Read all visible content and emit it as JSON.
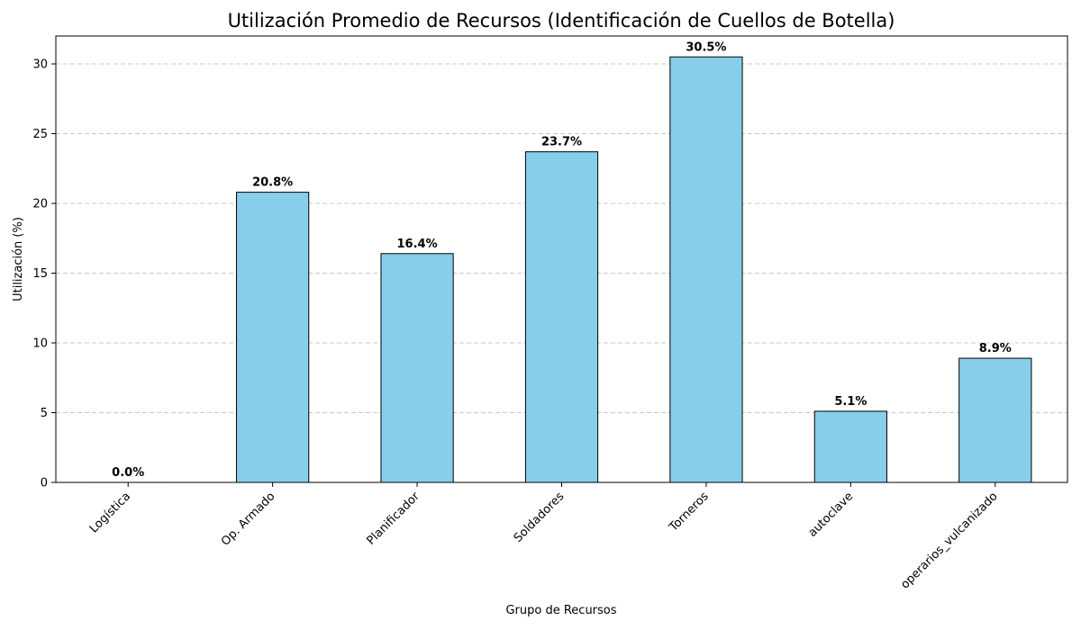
{
  "chart_data": {
    "type": "bar",
    "title": "Utilización Promedio de Recursos (Identificación de Cuellos de Botella)",
    "xlabel": "Grupo de Recursos",
    "ylabel": "Utilización (%)",
    "categories": [
      "Logística",
      "Op. Armado",
      "Planificador",
      "Soldadores",
      "Torneros",
      "autoclave",
      "operarios_vulcanizado"
    ],
    "values": [
      0.0,
      20.8,
      16.4,
      23.7,
      30.5,
      5.1,
      8.9
    ],
    "value_labels": [
      "0.0%",
      "20.8%",
      "16.4%",
      "23.7%",
      "30.5%",
      "5.1%",
      "8.9%"
    ],
    "ylim": [
      0,
      32
    ],
    "yticks": [
      0,
      5,
      10,
      15,
      20,
      25,
      30
    ],
    "grid": "y-dashed",
    "bar_color": "#87ceeb",
    "edge_color": "#000000",
    "grid_color": "#c8c8c8"
  }
}
